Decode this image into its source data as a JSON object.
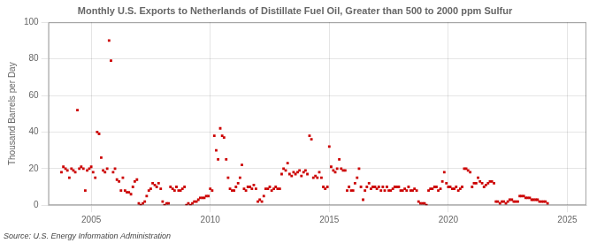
{
  "chart_data": {
    "type": "scatter",
    "title": "Monthly U.S. Exports to Netherlands of Distillate Fuel Oil, Greater than 500 to 2000 ppm Sulfur",
    "y_label": "Thousand Barrels per Day",
    "annotations": [
      "Source: U.S. Energy Information Administration"
    ],
    "color": "#cc0000",
    "marker": "square",
    "grid": true,
    "xlim": [
      2003.2,
      2025.8
    ],
    "xticks": [
      2005,
      2010,
      2015,
      2020,
      2025
    ],
    "ylim": [
      0,
      100
    ],
    "yticks": [
      0,
      20,
      40,
      60,
      80,
      100
    ],
    "x": [
      2003.75,
      2003.83,
      2003.92,
      2004.0,
      2004.08,
      2004.17,
      2004.25,
      2004.33,
      2004.42,
      2004.5,
      2004.58,
      2004.67,
      2004.75,
      2004.83,
      2004.92,
      2005.0,
      2005.08,
      2005.17,
      2005.25,
      2005.33,
      2005.42,
      2005.5,
      2005.58,
      2005.67,
      2005.75,
      2005.83,
      2005.92,
      2006.0,
      2006.08,
      2006.17,
      2006.25,
      2006.33,
      2006.42,
      2006.5,
      2006.58,
      2006.67,
      2006.75,
      2006.83,
      2006.92,
      2007.0,
      2007.08,
      2007.17,
      2007.25,
      2007.33,
      2007.42,
      2007.5,
      2007.58,
      2007.67,
      2007.75,
      2007.83,
      2007.92,
      2008.0,
      2008.08,
      2008.17,
      2008.25,
      2008.33,
      2008.42,
      2008.5,
      2008.58,
      2008.67,
      2008.75,
      2008.83,
      2008.92,
      2009.0,
      2009.08,
      2009.17,
      2009.25,
      2009.33,
      2009.42,
      2009.5,
      2009.58,
      2009.67,
      2009.75,
      2009.83,
      2009.92,
      2010.0,
      2010.08,
      2010.17,
      2010.25,
      2010.33,
      2010.42,
      2010.5,
      2010.58,
      2010.67,
      2010.75,
      2010.83,
      2010.92,
      2011.0,
      2011.08,
      2011.17,
      2011.25,
      2011.33,
      2011.42,
      2011.5,
      2011.58,
      2011.67,
      2011.75,
      2011.83,
      2011.92,
      2012.0,
      2012.08,
      2012.17,
      2012.25,
      2012.33,
      2012.42,
      2012.5,
      2012.58,
      2012.67,
      2012.75,
      2012.83,
      2012.92,
      2013.0,
      2013.08,
      2013.17,
      2013.25,
      2013.33,
      2013.42,
      2013.5,
      2013.58,
      2013.67,
      2013.75,
      2013.83,
      2013.92,
      2014.0,
      2014.08,
      2014.17,
      2014.25,
      2014.33,
      2014.42,
      2014.5,
      2014.58,
      2014.67,
      2014.75,
      2014.83,
      2014.92,
      2015.0,
      2015.08,
      2015.17,
      2015.25,
      2015.33,
      2015.42,
      2015.5,
      2015.58,
      2015.67,
      2015.75,
      2015.83,
      2015.92,
      2016.0,
      2016.08,
      2016.17,
      2016.25,
      2016.33,
      2016.42,
      2016.5,
      2016.58,
      2016.67,
      2016.75,
      2016.83,
      2016.92,
      2017.0,
      2017.08,
      2017.17,
      2017.25,
      2017.33,
      2017.42,
      2017.5,
      2017.58,
      2017.67,
      2017.75,
      2017.83,
      2017.92,
      2018.0,
      2018.08,
      2018.17,
      2018.25,
      2018.33,
      2018.42,
      2018.5,
      2018.58,
      2018.67,
      2018.75,
      2018.83,
      2018.92,
      2019.0,
      2019.08,
      2019.17,
      2019.25,
      2019.33,
      2019.42,
      2019.5,
      2019.58,
      2019.67,
      2019.75,
      2019.83,
      2019.92,
      2020.0,
      2020.08,
      2020.17,
      2020.25,
      2020.33,
      2020.42,
      2020.5,
      2020.58,
      2020.67,
      2020.75,
      2020.83,
      2020.92,
      2021.0,
      2021.08,
      2021.17,
      2021.25,
      2021.33,
      2021.42,
      2021.5,
      2021.58,
      2021.67,
      2021.75,
      2021.83,
      2021.92,
      2022.0,
      2022.08,
      2022.17,
      2022.25,
      2022.33,
      2022.42,
      2022.5,
      2022.58,
      2022.67,
      2022.75,
      2022.83,
      2022.92,
      2023.0,
      2023.08,
      2023.17,
      2023.25,
      2023.33,
      2023.42,
      2023.5,
      2023.58,
      2023.67,
      2023.75,
      2023.83,
      2023.92,
      2024.0,
      2024.08,
      2024.17
    ],
    "values": [
      18,
      21,
      20,
      19,
      15,
      20,
      19,
      18,
      52,
      20,
      21,
      20,
      8,
      19,
      20,
      21,
      18,
      15,
      40,
      39,
      26,
      19,
      18,
      20,
      90,
      79,
      18,
      20,
      14,
      13,
      8,
      15,
      8,
      7,
      7,
      6,
      10,
      13,
      14,
      1,
      0,
      1,
      2,
      5,
      8,
      9,
      12,
      11,
      10,
      12,
      9,
      2,
      0,
      1,
      1,
      10,
      9,
      8,
      10,
      8,
      8,
      9,
      10,
      0,
      1,
      0,
      1,
      2,
      2,
      3,
      4,
      4,
      4,
      5,
      5,
      9,
      8,
      38,
      30,
      25,
      42,
      38,
      37,
      25,
      15,
      9,
      8,
      8,
      10,
      12,
      15,
      22,
      9,
      8,
      10,
      10,
      9,
      11,
      9,
      2,
      3,
      2,
      5,
      9,
      9,
      10,
      8,
      9,
      10,
      9,
      9,
      17,
      20,
      19,
      23,
      17,
      16,
      18,
      17,
      18,
      19,
      16,
      18,
      19,
      17,
      38,
      36,
      15,
      16,
      15,
      18,
      15,
      10,
      9,
      10,
      32,
      21,
      19,
      18,
      20,
      25,
      20,
      19,
      19,
      8,
      10,
      8,
      8,
      12,
      15,
      20,
      10,
      3,
      8,
      10,
      12,
      9,
      10,
      10,
      9,
      10,
      8,
      10,
      8,
      10,
      8,
      8,
      9,
      10,
      10,
      10,
      8,
      8,
      9,
      8,
      10,
      8,
      8,
      9,
      8,
      2,
      1,
      1,
      1,
      0,
      8,
      9,
      9,
      10,
      10,
      8,
      9,
      13,
      18,
      12,
      10,
      10,
      9,
      9,
      10,
      8,
      9,
      10,
      20,
      20,
      19,
      18,
      10,
      12,
      12,
      15,
      13,
      12,
      10,
      11,
      12,
      13,
      13,
      12,
      2,
      2,
      1,
      2,
      2,
      1,
      2,
      3,
      3,
      2,
      2,
      2,
      5,
      5,
      5,
      4,
      4,
      4,
      3,
      3,
      3,
      3,
      2,
      2,
      2,
      2,
      1
    ]
  }
}
